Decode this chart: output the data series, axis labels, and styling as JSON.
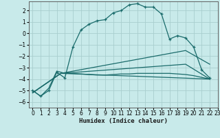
{
  "xlabel": "Humidex (Indice chaleur)",
  "bg_color": "#c8eaea",
  "grid_color": "#a8cece",
  "line_color": "#1a6b6b",
  "xlim": [
    -0.5,
    23
  ],
  "ylim": [
    -6.5,
    2.8
  ],
  "yticks": [
    -6,
    -5,
    -4,
    -3,
    -2,
    -1,
    0,
    1,
    2
  ],
  "xticks": [
    0,
    1,
    2,
    3,
    4,
    5,
    6,
    7,
    8,
    9,
    10,
    11,
    12,
    13,
    14,
    15,
    16,
    17,
    18,
    19,
    20,
    21,
    22,
    23
  ],
  "curve1_x": [
    0,
    1,
    2,
    3,
    4,
    5,
    6,
    7,
    8,
    9,
    10,
    11,
    12,
    13,
    14,
    15,
    16,
    17,
    18,
    19,
    20,
    21,
    22
  ],
  "curve1_y": [
    -5.0,
    -5.5,
    -5.0,
    -3.4,
    -3.9,
    -1.2,
    0.3,
    0.8,
    1.1,
    1.2,
    1.8,
    2.0,
    2.5,
    2.6,
    2.3,
    2.3,
    1.7,
    -0.5,
    -0.2,
    -0.4,
    -1.2,
    -3.2,
    -3.9
  ],
  "curve2_x": [
    0,
    1,
    2,
    3,
    4,
    5,
    6,
    7,
    8,
    9,
    10,
    11,
    12,
    13,
    14,
    15,
    16,
    17,
    18,
    19,
    20,
    21,
    22
  ],
  "curve2_y": [
    -5.0,
    -5.5,
    -4.8,
    -3.3,
    -3.5,
    -3.5,
    -3.55,
    -3.6,
    -3.65,
    -3.65,
    -3.6,
    -3.55,
    -3.55,
    -3.5,
    -3.5,
    -3.5,
    -3.5,
    -3.5,
    -3.55,
    -3.6,
    -3.7,
    -3.85,
    -4.0
  ],
  "curve3_x": [
    0,
    3.5,
    22
  ],
  "curve3_y": [
    -5.2,
    -3.5,
    -4.0
  ],
  "curve4_x": [
    0,
    3.5,
    19,
    22
  ],
  "curve4_y": [
    -5.2,
    -3.5,
    -1.5,
    -2.7
  ],
  "curve5_x": [
    0,
    3.5,
    19,
    22
  ],
  "curve5_y": [
    -5.2,
    -3.5,
    -2.7,
    -4.0
  ]
}
